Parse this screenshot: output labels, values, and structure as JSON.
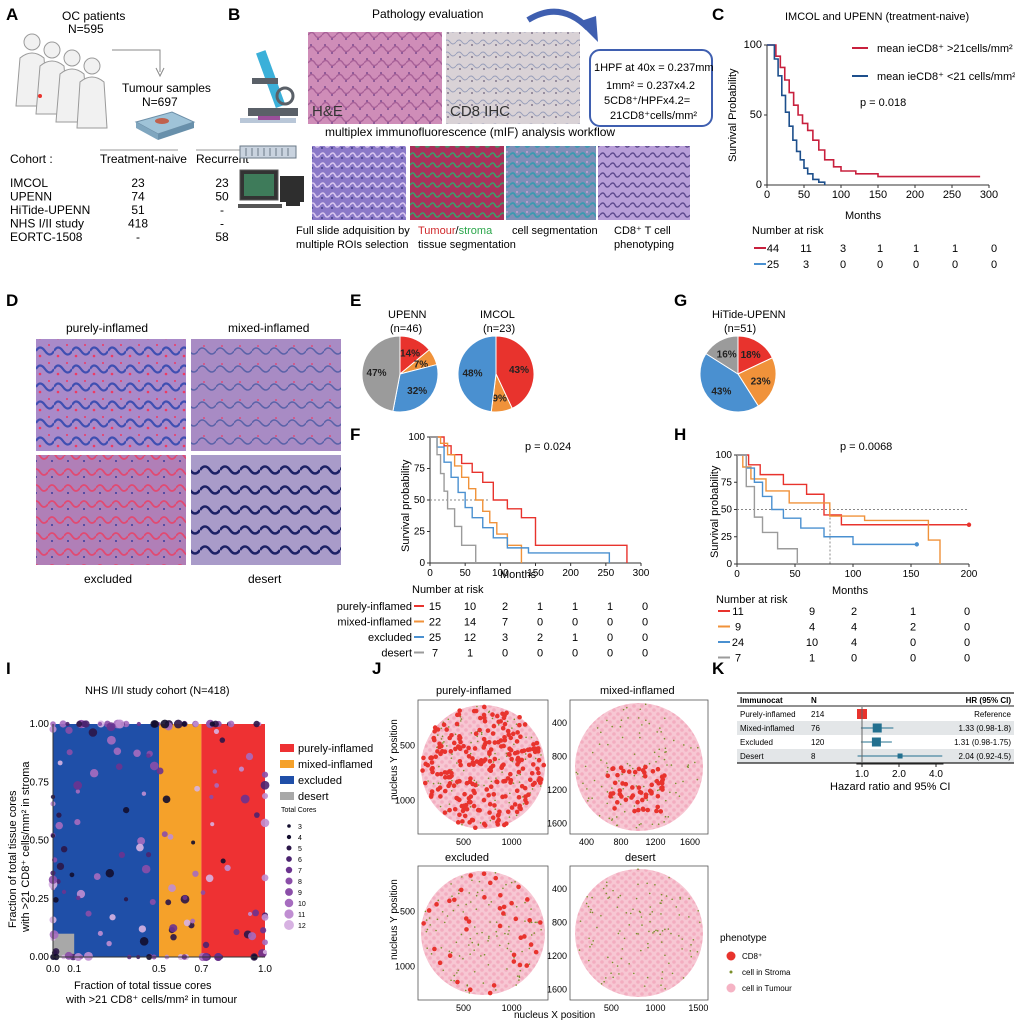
{
  "panels": {
    "A": {
      "letter": "A",
      "patients_title": "OC patients",
      "patients_n": "N=595",
      "samples_title": "Tumour samples",
      "samples_n": "N=697",
      "cohort_label": "Cohort :",
      "col_naive": "Treatment-naive",
      "col_recurrent": "Recurrent",
      "rows": [
        {
          "name": "IMCOL",
          "naive": "23",
          "recurrent": "23"
        },
        {
          "name": "UPENN",
          "naive": "74",
          "recurrent": "50"
        },
        {
          "name": "HiTide-UPENN",
          "naive": "51",
          "recurrent": "-"
        },
        {
          "name": "NHS I/II study",
          "naive": "418",
          "recurrent": "-"
        },
        {
          "name": "EORTC-1508",
          "naive": "-",
          "recurrent": "58"
        }
      ]
    },
    "B": {
      "letter": "B",
      "title": "Pathology evaluation",
      "he_label": "H&E",
      "cd8_label": "CD8 IHC",
      "formula": [
        "1HPF at 40x = 0.237mm",
        "1mm² = 0.237x4.2",
        "5CD8⁺/HPFx4.2=",
        "21CD8⁺cells/mm²"
      ],
      "mif_title": "multiplex immunofluorescence (mIF) analysis workflow",
      "step1": [
        "Full slide adquisition by",
        "multiple ROIs selection"
      ],
      "step2_tumour": "Tumour",
      "step2_slash": "/",
      "step2_stroma": "stroma",
      "step2_line2": "tissue segmentation",
      "step3": "cell segmentation",
      "step4": [
        "CD8⁺ T cell",
        "phenotyping"
      ]
    },
    "C": {
      "letter": "C",
      "title": "IMCOL and UPENN (treatment-naive)",
      "legend_high": "mean ieCD8⁺ >21cells/mm²",
      "legend_low": "mean ieCD8⁺ <21 cells/mm²",
      "pvalue": "p = 0.018",
      "ylabel": "Survival Probability",
      "xlabel": "Months",
      "yticks": [
        "0",
        "50",
        "100"
      ],
      "xticks": [
        "0",
        "50",
        "100",
        "150",
        "200",
        "250",
        "300"
      ],
      "risk_title": "Number at risk",
      "risk_high": [
        "44",
        "11",
        "3",
        "1",
        "1",
        "1",
        "0"
      ],
      "risk_low": [
        "25",
        "3",
        "0",
        "0",
        "0",
        "0",
        "0"
      ]
    },
    "D": {
      "letter": "D",
      "labels": [
        "purely-inflamed",
        "mixed-inflamed",
        "excluded",
        "desert"
      ]
    },
    "E": {
      "letter": "E",
      "pie1_title": "UPENN",
      "pie1_n": "(n=46)",
      "pie1_pct": [
        "14%",
        "7%",
        "32%",
        "47%"
      ],
      "pie2_title": "IMCOL",
      "pie2_n": "(n=23)",
      "pie2_pct": [
        "43%",
        "9%",
        "48%"
      ]
    },
    "G": {
      "letter": "G",
      "title": "HiTide-UPENN",
      "n": "(n=51)",
      "pct": [
        "18%",
        "23%",
        "43%",
        "16%"
      ]
    },
    "F": {
      "letter": "F",
      "pvalue": "p = 0.024",
      "ylabel": "Survival probability",
      "xlabel": "Months",
      "yticks": [
        "0",
        "25",
        "50",
        "75",
        "100"
      ],
      "xticks": [
        "0",
        "50",
        "100",
        "150",
        "200",
        "250",
        "300"
      ],
      "risk_title": "Number at risk",
      "risk_rows": [
        {
          "name": "purely-inflamed",
          "vals": [
            "15",
            "10",
            "2",
            "1",
            "1",
            "1",
            "0"
          ]
        },
        {
          "name": "mixed-inflamed",
          "vals": [
            "22",
            "14",
            "7",
            "0",
            "0",
            "0",
            "0"
          ]
        },
        {
          "name": "excluded",
          "vals": [
            "25",
            "12",
            "3",
            "2",
            "1",
            "0",
            "0"
          ]
        },
        {
          "name": "desert",
          "vals": [
            "7",
            "1",
            "0",
            "0",
            "0",
            "0",
            "0"
          ]
        }
      ]
    },
    "H": {
      "letter": "H",
      "pvalue": "p = 0.0068",
      "ylabel": "Survival probability",
      "xlabel": "Months",
      "yticks": [
        "0",
        "25",
        "50",
        "75",
        "100"
      ],
      "xticks": [
        "0",
        "50",
        "100",
        "150",
        "200"
      ],
      "risk_title": "Number at risk",
      "risk_rows": [
        {
          "vals": [
            "11",
            "9",
            "2",
            "1",
            "0"
          ]
        },
        {
          "vals": [
            "9",
            "4",
            "4",
            "2",
            "0"
          ]
        },
        {
          "vals": [
            "24",
            "10",
            "4",
            "0",
            "0"
          ]
        },
        {
          "vals": [
            "7",
            "1",
            "0",
            "0",
            "0"
          ]
        }
      ]
    },
    "I": {
      "letter": "I",
      "title": "NHS I/II study cohort (N=418)",
      "ylabel": [
        "Fraction of total tissue cores",
        "with >21 CD8⁺ cells/mm² in stroma"
      ],
      "xlabel": [
        "Fraction of total tissue cores",
        "with >21 CD8⁺ cells/mm² in tumour"
      ],
      "yticks": [
        "0.00",
        "0.25",
        "0.50",
        "0.75",
        "1.00"
      ],
      "xticks": [
        "0.0",
        "0.1",
        "0.5",
        "0.7",
        "1.0"
      ],
      "legend": [
        "purely-inflamed",
        "mixed-inflamed",
        "excluded",
        "desert"
      ],
      "size_title": "Total Cores",
      "size_vals": [
        "3",
        "4",
        "5",
        "6",
        "7",
        "8",
        "9",
        "10",
        "11",
        "12"
      ]
    },
    "J": {
      "letter": "J",
      "titles": [
        "purely-inflamed",
        "mixed-inflamed",
        "excluded",
        "desert"
      ],
      "ylabel": "nucleus Y position",
      "xlabel": "nucleus X position",
      "left_yticks": [
        "1000",
        "500"
      ],
      "right_yticks": [
        "1600",
        "1200",
        "800",
        "400"
      ],
      "top_left_xticks": [
        "500",
        "1000"
      ],
      "top_right_xticks": [
        "400",
        "800",
        "1200",
        "1600"
      ],
      "bottom_left_xticks": [
        "500",
        "1000"
      ],
      "bottom_right_xticks": [
        "500",
        "1000",
        "1500"
      ],
      "legend_title": "phenotype",
      "legend": [
        "CD8⁺",
        "cell in Stroma",
        "cell in Tumour"
      ]
    },
    "K": {
      "letter": "K",
      "header": [
        "Immunocat",
        "N",
        "HR (95% CI)"
      ],
      "rows": [
        {
          "name": "Purely-inflamed",
          "n": "214",
          "hr": "Reference"
        },
        {
          "name": "Mixed-inflamed",
          "n": "76",
          "hr": "1.33 (0.98-1.8)"
        },
        {
          "name": "Excluded",
          "n": "120",
          "hr": "1.31 (0.98-1.75)"
        },
        {
          "name": "Desert",
          "n": "8",
          "hr": "2.04 (0.92-4.5)"
        }
      ],
      "xticks": [
        "1.0",
        "2.0",
        "4.0"
      ],
      "xlabel": "Hazard ratio and 95% CI"
    }
  },
  "colors": {
    "red": "#e8332d",
    "orange": "#f0923a",
    "blue": "#4a90d0",
    "gray": "#9b9b9b",
    "dark_blue": "#1f4fa8",
    "crimson": "#c8203d",
    "navy": "#1d4f8c",
    "teal": "#23708f"
  },
  "chart_data": [
    {
      "type": "line",
      "title": "IMCOL and UPENN (treatment-naive)",
      "xlabel": "Months",
      "ylabel": "Survival Probability",
      "xlim": [
        0,
        300
      ],
      "ylim": [
        0,
        100
      ],
      "series": [
        {
          "name": "mean ieCD8⁺ >21cells/mm²",
          "x": [
            0,
            12,
            18,
            24,
            30,
            36,
            42,
            48,
            55,
            62,
            70,
            78,
            90,
            100,
            120,
            150,
            180,
            210,
            240,
            270,
            288
          ],
          "y": [
            100,
            92,
            84,
            75,
            66,
            57,
            50,
            44,
            39,
            32,
            25,
            18,
            13,
            10,
            8,
            6,
            6,
            6,
            6,
            6,
            6
          ]
        },
        {
          "name": "mean ieCD8⁺ <21 cells/mm²",
          "x": [
            0,
            10,
            15,
            20,
            25,
            30,
            35,
            40,
            45,
            50,
            55,
            62,
            70,
            78
          ],
          "y": [
            100,
            90,
            78,
            64,
            52,
            42,
            32,
            24,
            18,
            12,
            8,
            4,
            2,
            0
          ]
        }
      ]
    },
    {
      "type": "pie",
      "title": "UPENN",
      "series": [
        {
          "values": [
            14,
            7,
            32,
            47
          ]
        }
      ]
    },
    {
      "type": "pie",
      "title": "IMCOL",
      "series": [
        {
          "values": [
            43,
            9,
            48
          ]
        }
      ]
    },
    {
      "type": "pie",
      "title": "HiTide-UPENN",
      "series": [
        {
          "values": [
            18,
            23,
            43,
            16
          ]
        }
      ]
    },
    {
      "type": "line",
      "xlabel": "Months",
      "ylabel": "Survival probability",
      "xlim": [
        0,
        300
      ],
      "ylim": [
        0,
        100
      ],
      "series": [
        {
          "name": "purely-inflamed",
          "x": [
            0,
            20,
            30,
            45,
            60,
            75,
            90,
            110,
            130,
            150,
            180,
            240,
            280
          ],
          "y": [
            100,
            93,
            86,
            79,
            72,
            64,
            50,
            43,
            36,
            14,
            14,
            14,
            0
          ]
        },
        {
          "name": "mixed-inflamed",
          "x": [
            0,
            15,
            25,
            35,
            45,
            55,
            65,
            75,
            85,
            95,
            110,
            130
          ],
          "y": [
            100,
            95,
            86,
            77,
            68,
            59,
            50,
            41,
            32,
            23,
            14,
            0
          ]
        },
        {
          "name": "excluded",
          "x": [
            0,
            10,
            20,
            30,
            40,
            50,
            60,
            75,
            90,
            110,
            140,
            200,
            255
          ],
          "y": [
            100,
            92,
            80,
            68,
            56,
            44,
            36,
            28,
            20,
            12,
            8,
            8,
            0
          ]
        },
        {
          "name": "desert",
          "x": [
            0,
            10,
            15,
            20,
            25,
            35,
            45,
            55,
            65
          ],
          "y": [
            100,
            86,
            71,
            57,
            43,
            29,
            14,
            14,
            0
          ]
        }
      ]
    },
    {
      "type": "line",
      "xlabel": "Months",
      "ylabel": "Survival probability",
      "xlim": [
        0,
        200
      ],
      "ylim": [
        0,
        100
      ],
      "series": [
        {
          "name": "purely-inflamed",
          "x": [
            0,
            10,
            20,
            40,
            60,
            75,
            90,
            200
          ],
          "y": [
            100,
            91,
            82,
            73,
            64,
            45,
            36,
            36
          ]
        },
        {
          "name": "mixed-inflamed",
          "x": [
            0,
            5,
            12,
            25,
            45,
            80,
            110,
            150,
            165,
            175
          ],
          "y": [
            100,
            89,
            78,
            67,
            56,
            44,
            40,
            40,
            22,
            0
          ]
        },
        {
          "name": "excluded",
          "x": [
            0,
            8,
            15,
            22,
            30,
            40,
            55,
            75,
            100,
            155
          ],
          "y": [
            100,
            88,
            75,
            62,
            50,
            42,
            33,
            25,
            18,
            18
          ]
        },
        {
          "name": "desert",
          "x": [
            0,
            8,
            15,
            22,
            35,
            52
          ],
          "y": [
            100,
            71,
            43,
            29,
            14,
            0
          ]
        }
      ]
    },
    {
      "type": "scatter",
      "title": "NHS I/II study cohort (N=418)",
      "xlim": [
        0,
        1
      ],
      "ylim": [
        0,
        1
      ],
      "regions": [
        {
          "name": "desert",
          "x": [
            0,
            0.1
          ],
          "y": [
            0,
            0.1
          ]
        },
        {
          "name": "excluded",
          "x": [
            0,
            0.5
          ],
          "y": [
            0,
            1
          ]
        },
        {
          "name": "mixed-inflamed",
          "x": [
            0.5,
            0.7
          ],
          "y": [
            0,
            1
          ]
        },
        {
          "name": "purely-inflamed",
          "x": [
            0.7,
            1.0
          ],
          "y": [
            0,
            1
          ]
        }
      ]
    },
    {
      "type": "scatter",
      "title": "Hazard ratio and 95% CI",
      "series": [
        {
          "name": "Purely-inflamed",
          "values": [
            1.0
          ]
        },
        {
          "name": "Mixed-inflamed",
          "values": [
            1.33
          ],
          "ci": [
            0.98,
            1.8
          ]
        },
        {
          "name": "Excluded",
          "values": [
            1.31
          ],
          "ci": [
            0.98,
            1.75
          ]
        },
        {
          "name": "Desert",
          "values": [
            2.04
          ],
          "ci": [
            0.92,
            4.5
          ]
        }
      ]
    }
  ]
}
